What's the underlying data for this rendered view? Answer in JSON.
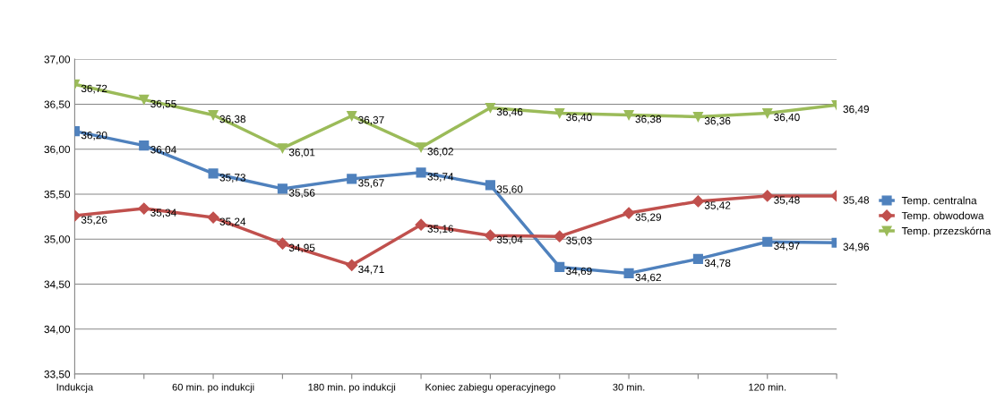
{
  "chart_data": {
    "type": "line",
    "categories": [
      "Indukcja",
      null,
      "60 min. po indukcji",
      null,
      "180 min. po indukcji",
      null,
      "Koniec zabiegu operacyjnego",
      null,
      "30 min.",
      null,
      "120 min.",
      null
    ],
    "series": [
      {
        "name": "Temp. centralna",
        "color": "#4f81bd",
        "marker": "square",
        "values": [
          36.2,
          36.04,
          35.73,
          35.56,
          35.67,
          35.74,
          35.6,
          34.69,
          34.62,
          34.78,
          34.97,
          34.96
        ],
        "value_labels": [
          "36,20",
          "36,04",
          "35,73",
          "35,56",
          "35,67",
          "35,74",
          "35,60",
          "34,69",
          "34,62",
          "34,78",
          "34,97",
          "34,96"
        ]
      },
      {
        "name": "Temp. obwodowa",
        "color": "#c0504d",
        "marker": "diamond",
        "values": [
          35.26,
          35.34,
          35.24,
          34.95,
          34.71,
          35.16,
          35.04,
          35.03,
          35.29,
          35.42,
          35.48,
          35.48
        ],
        "value_labels": [
          "35,26",
          "35,34",
          "35,24",
          "34,95",
          "34,71",
          "35,16",
          "35,04",
          "35,03",
          "35,29",
          "35,42",
          "35,48",
          "35,48"
        ]
      },
      {
        "name": "Temp. przezskórna",
        "color": "#9bbb59",
        "marker": "triangle",
        "values": [
          36.72,
          36.55,
          36.38,
          36.01,
          36.37,
          36.02,
          36.46,
          36.4,
          36.38,
          36.36,
          36.4,
          36.49
        ],
        "value_labels": [
          "36,72",
          "36,55",
          "36,38",
          "36,01",
          "36,37",
          "36,02",
          "36,46",
          "36,40",
          "36,38",
          "36,36",
          "36,40",
          "36,49"
        ]
      }
    ],
    "ylim": [
      33.5,
      37.0
    ],
    "yticks": [
      {
        "value": 33.5,
        "label": "33,50"
      },
      {
        "value": 34.0,
        "label": "34,00"
      },
      {
        "value": 34.5,
        "label": "34,50"
      },
      {
        "value": 35.0,
        "label": "35,00"
      },
      {
        "value": 35.5,
        "label": "35,50"
      },
      {
        "value": 36.0,
        "label": "36,00"
      },
      {
        "value": 36.5,
        "label": "36,50"
      },
      {
        "value": 37.0,
        "label": "37,00"
      }
    ],
    "grid": "y",
    "legend": "right",
    "line_style": "solid"
  }
}
